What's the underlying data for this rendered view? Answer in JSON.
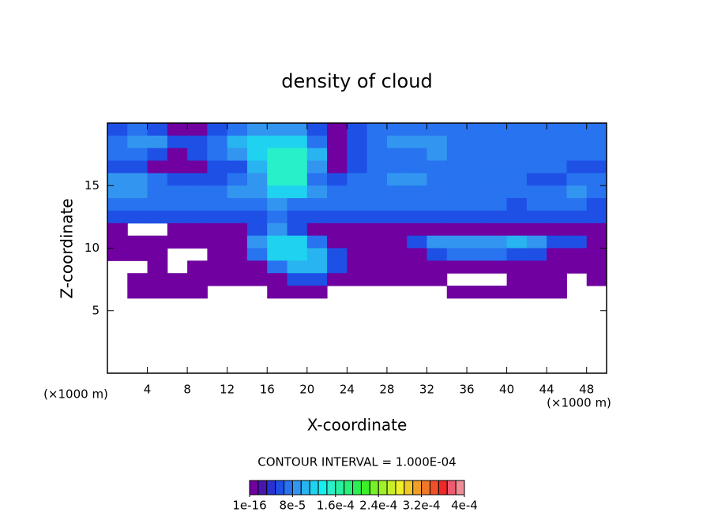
{
  "chart_data": {
    "type": "contour",
    "title": "density of cloud",
    "x_label": "X-coordinate",
    "y_label": "Z-coordinate",
    "x_unit_label": "(×1000 m)",
    "y_unit_label": "(×1000 m)",
    "annotation": "CONTOUR INTERVAL = 1.000E-04",
    "xlim": [
      0,
      50
    ],
    "ylim": [
      0,
      20
    ],
    "xticks": [
      4,
      8,
      12,
      16,
      20,
      24,
      28,
      32,
      36,
      40,
      44,
      48
    ],
    "yticks": [
      5,
      10,
      15
    ],
    "zlim": [
      1e-16,
      0.0004
    ],
    "zticks": [
      1e-16,
      {
        "value": 8e-05,
        "label": "8e-5"
      },
      {
        "value": 0.00016,
        "label": "1.6e-4"
      },
      {
        "value": 0.00024,
        "label": "2.4e-4"
      },
      {
        "value": 0.00032,
        "label": "3.2e-4"
      },
      {
        "value": 0.0004,
        "label": "4e-4"
      }
    ],
    "colorscale": [
      "#7000a0",
      "#4a14b0",
      "#2832d2",
      "#1e50e6",
      "#2873f0",
      "#3296f0",
      "#28b4f0",
      "#1ed2f0",
      "#14f0f0",
      "#28f0c8",
      "#28f0a0",
      "#28f078",
      "#28f050",
      "#3cf028",
      "#78f028",
      "#a0f028",
      "#c8f028",
      "#f0f028",
      "#f0c828",
      "#f0a028",
      "#f07828",
      "#f05028",
      "#f02828",
      "#f05a6e",
      "#f08c96"
    ],
    "z_grid_top": 20,
    "z": [
      [
        5e-05,
        6.5e-05,
        5e-05,
        5e-06,
        5e-06,
        5e-05,
        6.5e-05,
        8.5e-05,
        8.5e-05,
        8.5e-05,
        5e-05,
        5e-06,
        5e-05,
        6.5e-05,
        6.5e-05,
        6.5e-05,
        6.5e-05,
        6.5e-05,
        6.5e-05,
        6.5e-05,
        6.5e-05,
        6.5e-05,
        6.5e-05,
        6.5e-05,
        6.5e-05
      ],
      [
        6.5e-05,
        8.5e-05,
        8.5e-05,
        5e-05,
        5e-05,
        6.5e-05,
        0.000105,
        0.000125,
        0.000125,
        0.000125,
        6.5e-05,
        5e-06,
        5e-05,
        6.5e-05,
        8.5e-05,
        8.5e-05,
        8.5e-05,
        6.5e-05,
        6.5e-05,
        6.5e-05,
        6.5e-05,
        6.5e-05,
        6.5e-05,
        6.5e-05,
        6.5e-05
      ],
      [
        6.5e-05,
        6.5e-05,
        5e-05,
        5e-06,
        5e-05,
        6.5e-05,
        8.5e-05,
        0.000125,
        0.000145,
        0.000145,
        0.000105,
        5e-06,
        5e-05,
        6.5e-05,
        6.5e-05,
        6.5e-05,
        8.5e-05,
        6.5e-05,
        6.5e-05,
        6.5e-05,
        6.5e-05,
        6.5e-05,
        6.5e-05,
        6.5e-05,
        6.5e-05
      ],
      [
        5e-05,
        5e-05,
        5e-06,
        5e-06,
        5e-06,
        5e-05,
        5e-05,
        0.000105,
        0.000145,
        0.000145,
        8.5e-05,
        5e-06,
        5e-05,
        6.5e-05,
        6.5e-05,
        6.5e-05,
        6.5e-05,
        6.5e-05,
        6.5e-05,
        6.5e-05,
        6.5e-05,
        6.5e-05,
        6.5e-05,
        5e-05,
        5e-05
      ],
      [
        8.5e-05,
        8.5e-05,
        6.5e-05,
        5e-05,
        5e-05,
        5e-05,
        6.5e-05,
        8.5e-05,
        0.000145,
        0.000145,
        6.5e-05,
        5e-05,
        6.5e-05,
        6.5e-05,
        8.5e-05,
        8.5e-05,
        6.5e-05,
        6.5e-05,
        6.5e-05,
        6.5e-05,
        6.5e-05,
        5e-05,
        5e-05,
        6.5e-05,
        6.5e-05
      ],
      [
        8.5e-05,
        8.5e-05,
        6.5e-05,
        6.5e-05,
        6.5e-05,
        6.5e-05,
        8.5e-05,
        8.5e-05,
        0.000125,
        0.000125,
        8.5e-05,
        6.5e-05,
        6.5e-05,
        6.5e-05,
        6.5e-05,
        6.5e-05,
        6.5e-05,
        6.5e-05,
        6.5e-05,
        6.5e-05,
        6.5e-05,
        6.5e-05,
        6.5e-05,
        8.5e-05,
        6.5e-05
      ],
      [
        6.5e-05,
        6.5e-05,
        6.5e-05,
        6.5e-05,
        6.5e-05,
        6.5e-05,
        6.5e-05,
        6.5e-05,
        8.5e-05,
        6.5e-05,
        6.5e-05,
        6.5e-05,
        6.5e-05,
        6.5e-05,
        6.5e-05,
        6.5e-05,
        6.5e-05,
        6.5e-05,
        6.5e-05,
        6.5e-05,
        5e-05,
        6.5e-05,
        6.5e-05,
        6.5e-05,
        5e-05
      ],
      [
        5e-05,
        5e-05,
        5e-05,
        5e-05,
        5e-05,
        5e-05,
        5e-05,
        5e-05,
        6.5e-05,
        5e-05,
        5e-05,
        5e-05,
        5e-05,
        5e-05,
        5e-05,
        5e-05,
        5e-05,
        5e-05,
        5e-05,
        5e-05,
        5e-05,
        5e-05,
        5e-05,
        5e-05,
        5e-05
      ],
      [
        5e-06,
        null,
        null,
        5e-06,
        5e-06,
        5e-06,
        5e-06,
        5e-05,
        8.5e-05,
        5e-05,
        5e-06,
        5e-06,
        5e-06,
        5e-06,
        5e-06,
        5e-06,
        5e-06,
        5e-06,
        5e-06,
        5e-06,
        5e-06,
        5e-06,
        5e-06,
        5e-06,
        5e-06
      ],
      [
        5e-06,
        5e-06,
        5e-06,
        5e-06,
        5e-06,
        5e-06,
        5e-06,
        8.5e-05,
        0.000125,
        0.000125,
        6.5e-05,
        5e-06,
        5e-06,
        5e-06,
        5e-06,
        5e-05,
        8.5e-05,
        8.5e-05,
        8.5e-05,
        8.5e-05,
        0.000105,
        8.5e-05,
        5e-05,
        5e-05,
        5e-06
      ],
      [
        5e-06,
        5e-06,
        5e-06,
        null,
        null,
        5e-06,
        5e-06,
        6.5e-05,
        0.000125,
        0.000125,
        0.000105,
        5e-05,
        5e-06,
        5e-06,
        5e-06,
        5e-06,
        5e-05,
        6.5e-05,
        6.5e-05,
        6.5e-05,
        5e-05,
        5e-05,
        5e-06,
        5e-06,
        5e-06
      ],
      [
        null,
        null,
        5e-06,
        null,
        5e-06,
        5e-06,
        5e-06,
        5e-06,
        6.5e-05,
        0.000105,
        0.000105,
        5e-05,
        5e-06,
        5e-06,
        5e-06,
        5e-06,
        5e-06,
        5e-06,
        5e-06,
        5e-06,
        5e-06,
        5e-06,
        5e-06,
        5e-06,
        5e-06
      ],
      [
        null,
        5e-06,
        5e-06,
        5e-06,
        5e-06,
        5e-06,
        5e-06,
        5e-06,
        5e-06,
        5e-05,
        5e-05,
        5e-06,
        5e-06,
        5e-06,
        5e-06,
        5e-06,
        5e-06,
        null,
        null,
        null,
        5e-06,
        5e-06,
        5e-06,
        null,
        5e-06
      ],
      [
        null,
        5e-06,
        5e-06,
        5e-06,
        5e-06,
        null,
        null,
        null,
        5e-06,
        5e-06,
        5e-06,
        null,
        null,
        null,
        null,
        null,
        null,
        5e-06,
        5e-06,
        5e-06,
        5e-06,
        5e-06,
        5e-06,
        null,
        null
      ]
    ]
  }
}
